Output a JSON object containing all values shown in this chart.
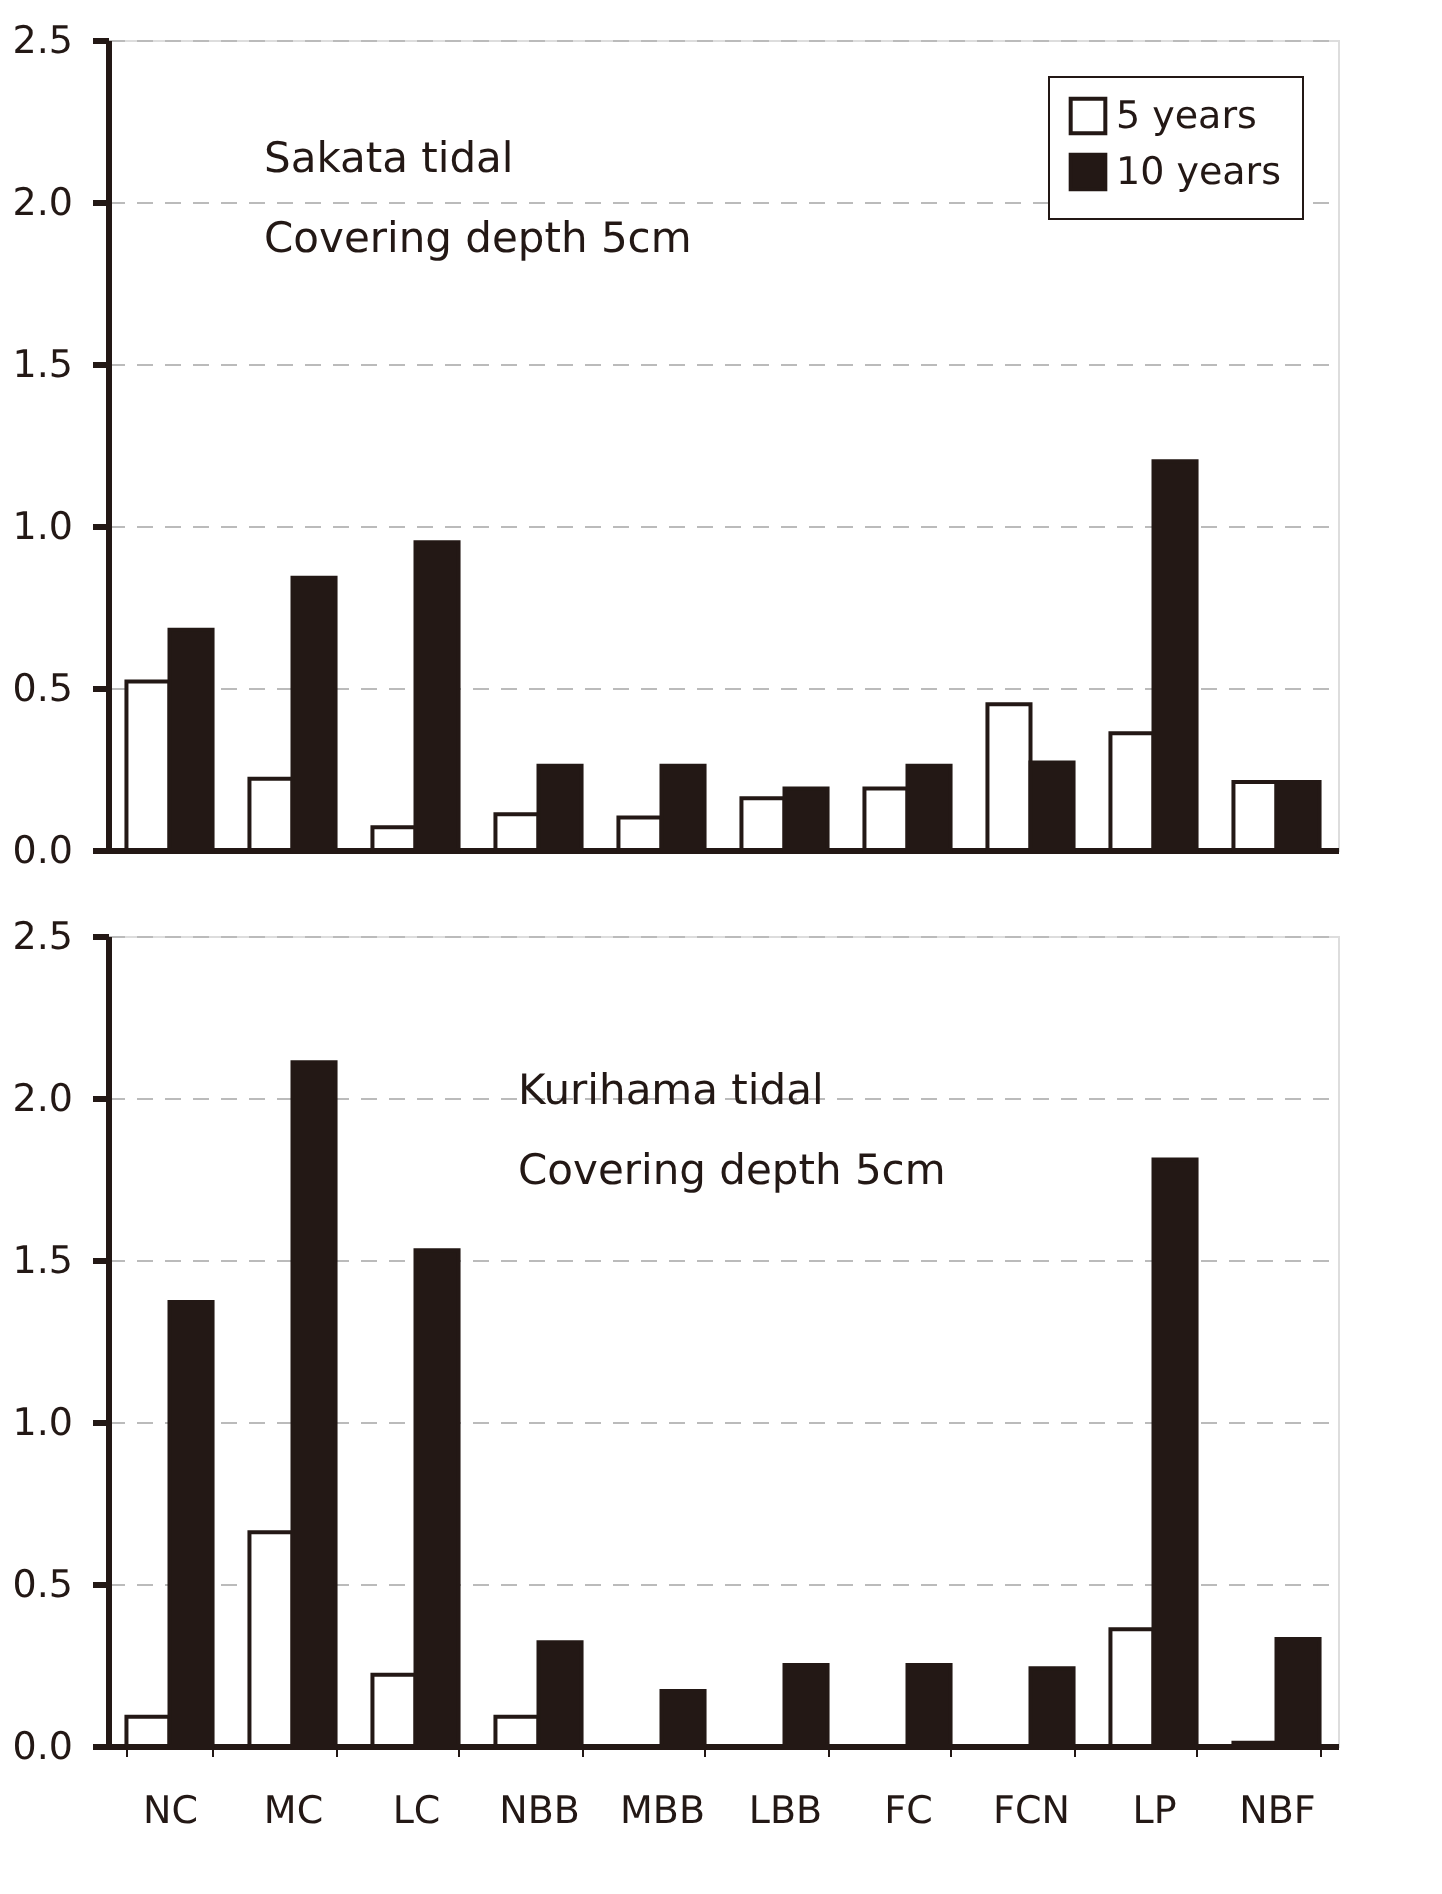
{
  "chart_data": [
    {
      "type": "bar",
      "categories": [
        "NC",
        "MC",
        "LC",
        "NBB",
        "MBB",
        "LBB",
        "FC",
        "FCN",
        "LP",
        "NBF"
      ],
      "annotations": [
        "Sakata tidal",
        "Covering depth 5cm"
      ],
      "ylim": [
        0,
        2.5
      ],
      "yticks": [
        {
          "value": 0,
          "label": "0.0"
        },
        0.5,
        {
          "value": 1,
          "label": "1.0"
        },
        1.5,
        {
          "value": 2,
          "label": "2.0"
        },
        2.5
      ],
      "grid": "y",
      "legend": "top right",
      "tick_labels": "y",
      "series": [
        {
          "name": "5 years",
          "color": "#ffffff",
          "values": [
            0.52,
            0.22,
            0.07,
            0.11,
            0.1,
            0.16,
            0.19,
            0.45,
            0.36,
            0.21
          ]
        },
        {
          "name": "10 years",
          "color": "#231815",
          "values": [
            0.68,
            0.84,
            0.95,
            0.26,
            0.26,
            0.19,
            0.26,
            0.27,
            1.2,
            0.21
          ]
        }
      ]
    },
    {
      "type": "bar",
      "categories": [
        "NC",
        "MC",
        "LC",
        "NBB",
        "MBB",
        "LBB",
        "FC",
        "FCN",
        "LP",
        "NBF"
      ],
      "annotations": [
        "Kurihama tidal",
        "Covering depth 5cm"
      ],
      "ylim": [
        0,
        2.5
      ],
      "yticks": [
        {
          "value": 0,
          "label": "0.0"
        },
        0.5,
        {
          "value": 1,
          "label": "1.0"
        },
        1.5,
        {
          "value": 2,
          "label": "2.0"
        },
        2.5
      ],
      "grid": "y",
      "series": [
        {
          "name": "5 years",
          "color": "#ffffff",
          "values": [
            0.09,
            0.66,
            0.22,
            0.09,
            null,
            null,
            null,
            null,
            0.36,
            0.01
          ]
        },
        {
          "name": "10 years",
          "color": "#231815",
          "values": [
            1.37,
            2.11,
            1.53,
            0.32,
            0.17,
            0.25,
            0.25,
            0.24,
            1.81,
            0.33
          ]
        }
      ]
    }
  ]
}
